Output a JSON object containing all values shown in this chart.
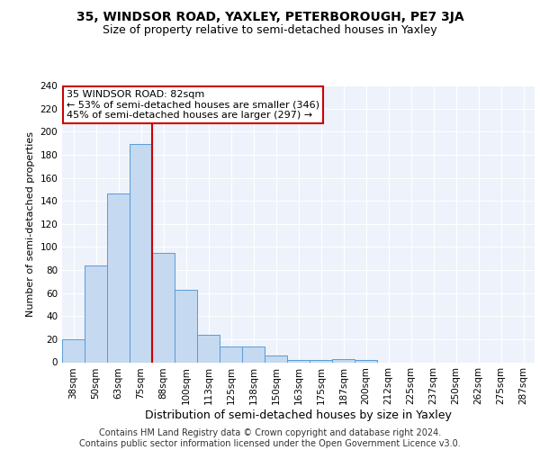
{
  "title": "35, WINDSOR ROAD, YAXLEY, PETERBOROUGH, PE7 3JA",
  "subtitle": "Size of property relative to semi-detached houses in Yaxley",
  "xlabel": "Distribution of semi-detached houses by size in Yaxley",
  "ylabel": "Number of semi-detached properties",
  "categories": [
    "38sqm",
    "50sqm",
    "63sqm",
    "75sqm",
    "88sqm",
    "100sqm",
    "113sqm",
    "125sqm",
    "138sqm",
    "150sqm",
    "163sqm",
    "175sqm",
    "187sqm",
    "200sqm",
    "212sqm",
    "225sqm",
    "237sqm",
    "250sqm",
    "262sqm",
    "275sqm",
    "287sqm"
  ],
  "values": [
    20,
    84,
    146,
    189,
    95,
    63,
    24,
    14,
    14,
    6,
    2,
    2,
    3,
    2,
    0,
    0,
    0,
    0,
    0,
    0,
    0
  ],
  "bar_color": "#c5d9f0",
  "bar_edge_color": "#5b9bd5",
  "ref_line_x": 3.5,
  "ref_line_color": "#cc0000",
  "annotation_text": "35 WINDSOR ROAD: 82sqm\n← 53% of semi-detached houses are smaller (346)\n45% of semi-detached houses are larger (297) →",
  "annotation_box_color": "#ffffff",
  "annotation_box_edge": "#cc0000",
  "ylim": [
    0,
    240
  ],
  "yticks": [
    0,
    20,
    40,
    60,
    80,
    100,
    120,
    140,
    160,
    180,
    200,
    220,
    240
  ],
  "footer_text": "Contains HM Land Registry data © Crown copyright and database right 2024.\nContains public sector information licensed under the Open Government Licence v3.0.",
  "bg_color": "#edf2fb",
  "grid_color": "#ffffff",
  "title_fontsize": 10,
  "subtitle_fontsize": 9,
  "xlabel_fontsize": 9,
  "ylabel_fontsize": 8,
  "tick_fontsize": 7.5,
  "footer_fontsize": 7,
  "annotation_fontsize": 8
}
